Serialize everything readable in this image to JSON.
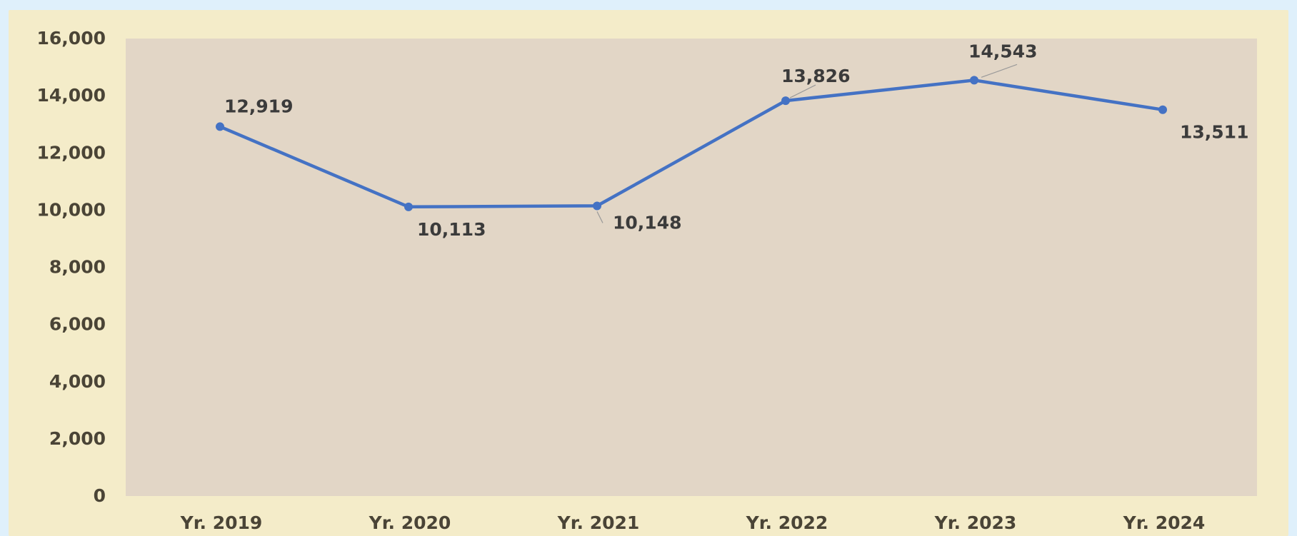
{
  "chart_data": {
    "type": "line",
    "categories": [
      "Yr. 2019",
      "Yr. 2020",
      "Yr. 2021",
      "Yr. 2022",
      "Yr. 2023",
      "Yr. 2024"
    ],
    "series": [
      {
        "values": [
          12919,
          10113,
          10148,
          13826,
          14543,
          13511
        ]
      }
    ],
    "data_labels": [
      "12,919",
      "10,113",
      "10,148",
      "13,826",
      "14,543",
      "13,511"
    ],
    "y_ticks": [
      "0",
      "2,000",
      "4,000",
      "6,000",
      "8,000",
      "10,000",
      "12,000",
      "14,000",
      "16,000"
    ],
    "ylim": [
      0,
      16000
    ],
    "grid": false,
    "legend": "none",
    "title": "",
    "xlabel": "",
    "ylabel": "",
    "colors": {
      "page_background": "#dff0fb",
      "chart_background": "#f4ecc9",
      "plot_area": "#e2d6c6",
      "line": "#4472c4",
      "axis_text": "#4a4436",
      "label_text": "#3b3b3b"
    }
  }
}
